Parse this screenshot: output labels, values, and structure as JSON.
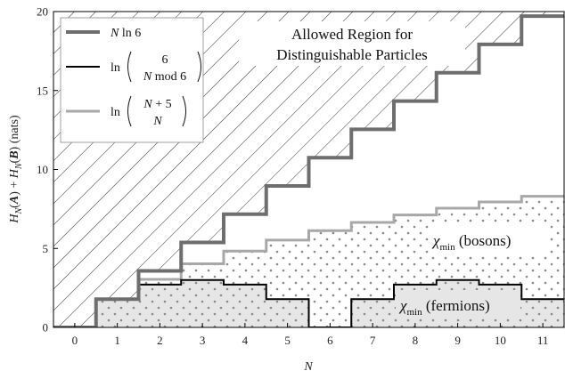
{
  "chart_data": {
    "type": "line",
    "title": "",
    "xlabel": "N",
    "ylabel": "H_N(A) + H_N(B) (nats)",
    "ylabel_parts": [
      "H",
      "N",
      "(",
      "A",
      ") + ",
      "H",
      "N",
      "(",
      "B",
      ") (nats)"
    ],
    "xlim": [
      -0.5,
      11.5
    ],
    "ylim": [
      0,
      20
    ],
    "x_ticks": [
      0,
      1,
      2,
      3,
      4,
      5,
      6,
      7,
      8,
      9,
      10,
      11
    ],
    "y_ticks": [
      0,
      5,
      10,
      15,
      20
    ],
    "grid": false,
    "legend_position": "top-left",
    "x": [
      0,
      1,
      2,
      3,
      4,
      5,
      6,
      7,
      8,
      9,
      10,
      11
    ],
    "series": [
      {
        "name": "N ln 6",
        "legend_parts": [
          "N",
          " ln 6"
        ],
        "color": "#6e6e6e",
        "values": [
          0,
          1.79,
          3.58,
          5.38,
          7.17,
          8.96,
          10.75,
          12.54,
          14.33,
          16.13,
          17.92,
          19.71
        ]
      },
      {
        "name": "ln C(6, N mod 6)",
        "legend_parts": [
          "ln",
          "6",
          "N",
          " mod 6"
        ],
        "color": "#000000",
        "values": [
          0,
          1.79,
          2.71,
          3.0,
          2.71,
          1.79,
          0,
          1.79,
          2.71,
          3.0,
          2.71,
          1.79
        ]
      },
      {
        "name": "ln C(N+5, N)",
        "legend_parts": [
          "ln",
          "N",
          " + 5",
          "N"
        ],
        "color": "#a8a8a8",
        "values": [
          0,
          1.79,
          3.04,
          4.03,
          4.83,
          5.53,
          6.13,
          6.65,
          7.12,
          7.55,
          7.94,
          8.3
        ]
      }
    ],
    "annotations": [
      {
        "lines": [
          "Allowed Region for",
          "Distinguishable Particles"
        ]
      },
      {
        "symbol": "χ",
        "subscript": "min",
        "text": " (bosons)"
      },
      {
        "symbol": "χ",
        "subscript": "min",
        "text": " (fermions)"
      }
    ]
  }
}
